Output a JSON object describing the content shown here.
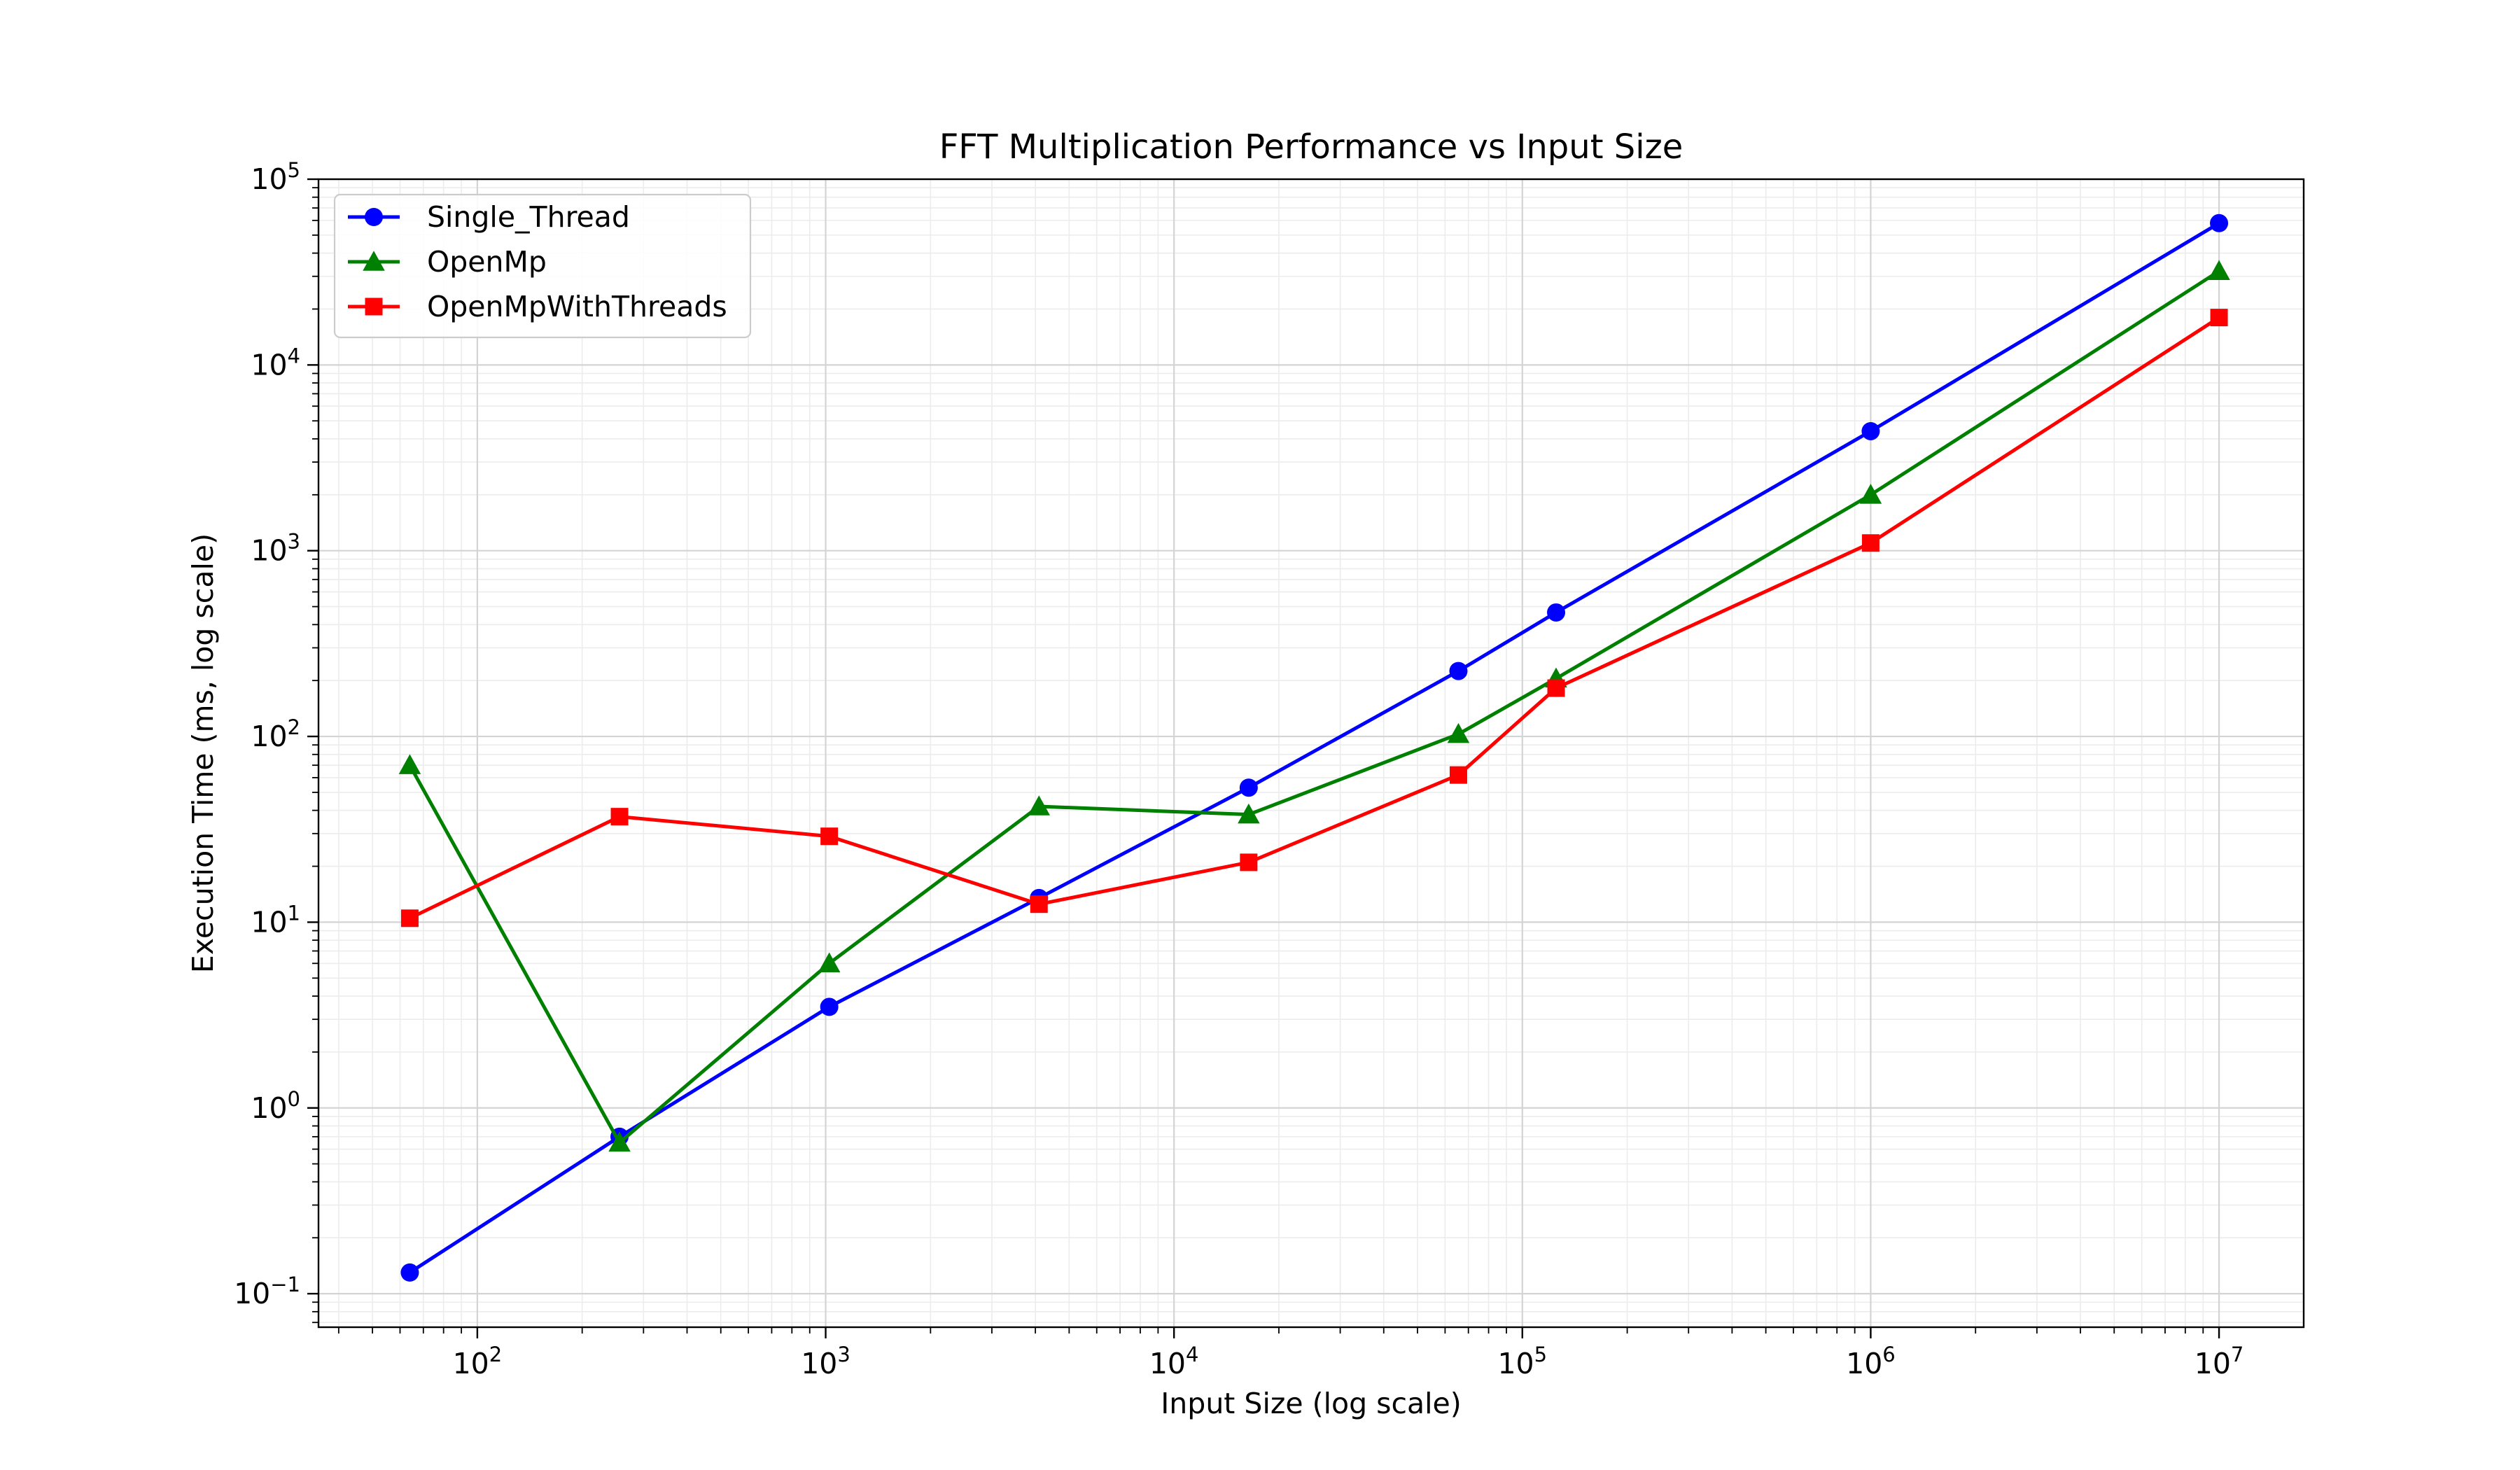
{
  "chart_data": {
    "type": "line",
    "title": "FFT Multiplication Performance vs Input Size",
    "xlabel": "Input Size (log scale)",
    "ylabel": "Execution Time (ms, log scale)",
    "xscale": "log",
    "yscale": "log",
    "xlim": [
      35,
      17500000
    ],
    "ylim": [
      0.066,
      100000
    ],
    "xticks": [
      {
        "base": "10",
        "exp": "2",
        "value": 100
      },
      {
        "base": "10",
        "exp": "3",
        "value": 1000
      },
      {
        "base": "10",
        "exp": "4",
        "value": 10000
      },
      {
        "base": "10",
        "exp": "5",
        "value": 100000
      },
      {
        "base": "10",
        "exp": "6",
        "value": 1000000
      },
      {
        "base": "10",
        "exp": "7",
        "value": 10000000
      }
    ],
    "yticks": [
      {
        "base": "10",
        "exp": "−1",
        "value": 0.1
      },
      {
        "base": "10",
        "exp": "0",
        "value": 1
      },
      {
        "base": "10",
        "exp": "1",
        "value": 10
      },
      {
        "base": "10",
        "exp": "2",
        "value": 100
      },
      {
        "base": "10",
        "exp": "3",
        "value": 1000
      },
      {
        "base": "10",
        "exp": "4",
        "value": 10000
      },
      {
        "base": "10",
        "exp": "5",
        "value": 100000
      }
    ],
    "grid": true,
    "legend_position": "upper-left",
    "series": [
      {
        "name": "Single_Thread",
        "color": "#0000ff",
        "marker": "circle",
        "points": [
          {
            "x": 64,
            "y": 0.13
          },
          {
            "x": 256,
            "y": 0.7
          },
          {
            "x": 1024,
            "y": 3.5
          },
          {
            "x": 4096,
            "y": 13.5
          },
          {
            "x": 16384,
            "y": 53
          },
          {
            "x": 65536,
            "y": 225
          },
          {
            "x": 125000,
            "y": 465
          },
          {
            "x": 1000000,
            "y": 4400
          },
          {
            "x": 10000000,
            "y": 58000
          }
        ]
      },
      {
        "name": "OpenMp",
        "color": "#008000",
        "marker": "triangle",
        "points": [
          {
            "x": 64,
            "y": 70
          },
          {
            "x": 256,
            "y": 0.65
          },
          {
            "x": 1024,
            "y": 6
          },
          {
            "x": 4096,
            "y": 42
          },
          {
            "x": 16384,
            "y": 38
          },
          {
            "x": 65536,
            "y": 103
          },
          {
            "x": 125000,
            "y": 205
          },
          {
            "x": 1000000,
            "y": 2000
          },
          {
            "x": 10000000,
            "y": 32000
          }
        ]
      },
      {
        "name": "OpenMpWithThreads",
        "color": "#ff0000",
        "marker": "square",
        "points": [
          {
            "x": 64,
            "y": 10.5
          },
          {
            "x": 256,
            "y": 37
          },
          {
            "x": 1024,
            "y": 29
          },
          {
            "x": 4096,
            "y": 12.5
          },
          {
            "x": 16384,
            "y": 21
          },
          {
            "x": 65536,
            "y": 62
          },
          {
            "x": 125000,
            "y": 182
          },
          {
            "x": 1000000,
            "y": 1100
          },
          {
            "x": 10000000,
            "y": 18000
          }
        ]
      }
    ]
  }
}
